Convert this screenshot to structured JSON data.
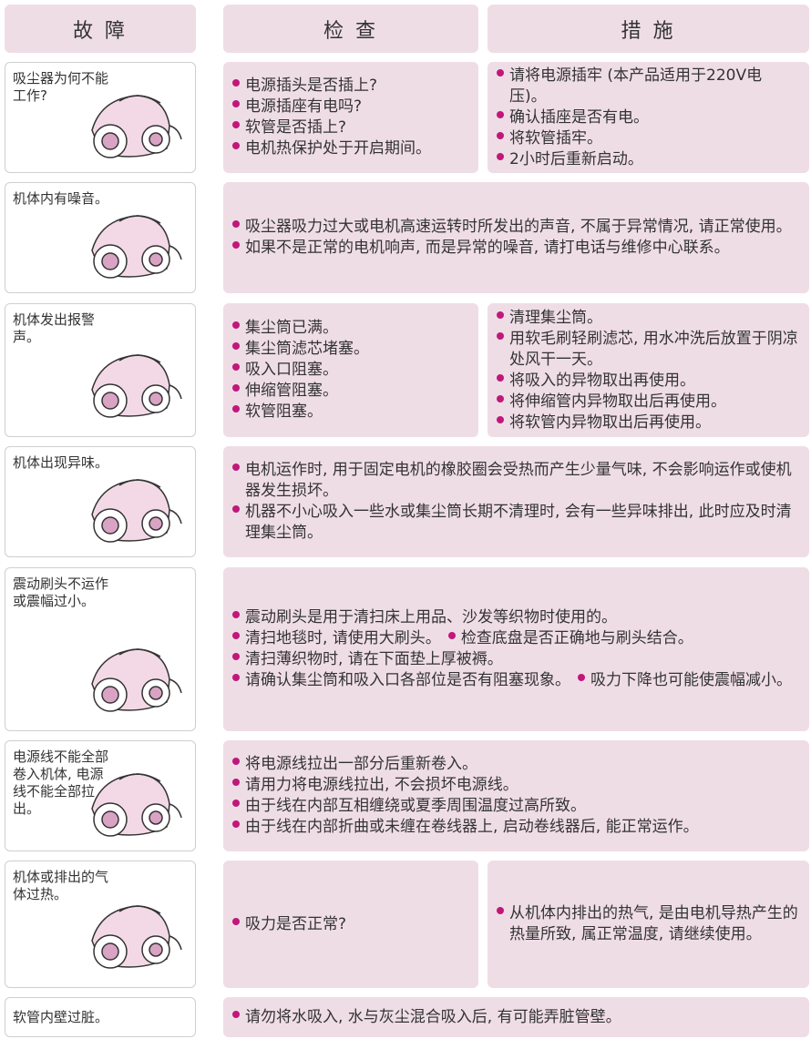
{
  "header": [
    "故 障",
    "检 查",
    "措 施"
  ],
  "rows": [
    {
      "problem": "吸尘器为何不能工作?",
      "check": [
        [
          "电源插头是否插上?"
        ],
        [
          "电源插座有电吗?"
        ],
        [
          "软管是否插上?"
        ],
        [
          "电机热保护处于开启期间。"
        ]
      ],
      "solution": [
        [
          "请将电源插牢 (本产品适用于220V电压)。"
        ],
        [
          "确认插座是否有电。"
        ],
        [
          "将软管插牢。"
        ],
        [
          "2小时后重新启动。"
        ]
      ]
    },
    {
      "problem": "机体内有噪音。",
      "check": [
        [
          "吸尘器吸力过大或电机高速运转时所发出的声音, 不属于异常情况, 请正常使用。"
        ],
        [
          "如果不是正常的电机响声, 而是异常的噪音, 请打电话与维修中心联系。"
        ]
      ]
    },
    {
      "problem": "机体发出报警声。",
      "check": [
        [
          "集尘筒已满。"
        ],
        [
          "集尘筒滤芯堵塞。"
        ],
        [
          "吸入口阻塞。"
        ],
        [
          "伸缩管阻塞。"
        ],
        [
          "软管阻塞。"
        ]
      ],
      "solution": [
        [
          "清理集尘筒。"
        ],
        [
          "用软毛刷轻刷滤芯, 用水冲洗后放置于阴凉处风干一天。"
        ],
        [
          "将吸入的异物取出再使用。"
        ],
        [
          "将伸缩管内异物取出后再使用。"
        ],
        [
          "将软管内异物取出后再使用。"
        ]
      ]
    },
    {
      "problem": "机体出现异味。",
      "check": [
        [
          "电机运作时, 用于固定电机的橡胶圈会受热而产生少量气味, 不会影响运作或使机器发生损坏。"
        ],
        [
          "机器不小心吸入一些水或集尘筒长期不清理时, 会有一些异味排出, 此时应及时清理集尘筒。"
        ]
      ]
    },
    {
      "problem": "震动刷头不运作或震幅过小。",
      "check": [
        [
          "震动刷头是用于清扫床上用品、沙发等织物时使用的。"
        ],
        [
          "清扫地毯时, 请使用大刷头。",
          "检查底盘是否正确地与刷头结合。"
        ],
        [
          "清扫薄织物时, 请在下面垫上厚被褥。"
        ],
        [
          "请确认集尘筒和吸入口各部位是否有阻塞现象。",
          "吸力下降也可能使震幅减小。"
        ]
      ]
    },
    {
      "problem": "电源线不能全部卷入机体, 电源线不能全部拉出。",
      "check": [
        [
          "将电源线拉出一部分后重新卷入。"
        ],
        [
          "请用力将电源线拉出, 不会损坏电源线。"
        ],
        [
          "由于线在内部互相缠绕或夏季周围温度过高所致。"
        ],
        [
          "由于线在内部折曲或未缠在卷线器上, 启动卷线器后, 能正常运作。"
        ]
      ]
    },
    {
      "problem": "机体或排出的气体过热。",
      "check": [
        [
          "吸力是否正常?"
        ]
      ],
      "solution": [
        [
          "从机体内排出的热气, 是由电机导热产生的热量所致, 属正常温度, 请继续使用。"
        ]
      ]
    },
    {
      "problem": "软管内壁过脏。",
      "check": [
        [
          "请勿将水吸入, 水与灰尘混合吸入后, 有可能弄脏管壁。"
        ]
      ]
    }
  ]
}
